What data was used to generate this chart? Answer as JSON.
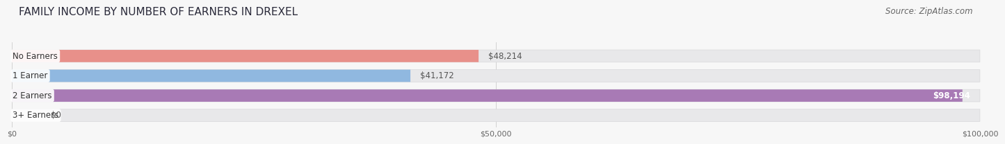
{
  "title": "FAMILY INCOME BY NUMBER OF EARNERS IN DREXEL",
  "source": "Source: ZipAtlas.com",
  "categories": [
    "No Earners",
    "1 Earner",
    "2 Earners",
    "3+ Earners"
  ],
  "values": [
    48214,
    41172,
    98194,
    0
  ],
  "max_value": 100000,
  "bar_colors": [
    "#e8908a",
    "#90b8e0",
    "#a87ab5",
    "#72c8c8"
  ],
  "bar_bg_color": "#e8e8ea",
  "bar_border_color": "#d8d8da",
  "label_bg_color": "#ffffff",
  "x_ticks": [
    0,
    50000,
    100000
  ],
  "x_tick_labels": [
    "$0",
    "$50,000",
    "$100,000"
  ],
  "title_fontsize": 11,
  "source_fontsize": 8.5,
  "cat_fontsize": 8.5,
  "val_fontsize": 8.5,
  "tick_fontsize": 8,
  "bar_height": 0.62,
  "background_color": "#f7f7f7",
  "value_inside_bar_idx": 2,
  "small_bar_idx": 3
}
